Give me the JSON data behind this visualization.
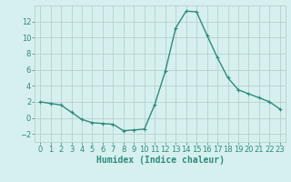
{
  "x": [
    0,
    1,
    2,
    3,
    4,
    5,
    6,
    7,
    8,
    9,
    10,
    11,
    12,
    13,
    14,
    15,
    16,
    17,
    18,
    19,
    20,
    21,
    22,
    23
  ],
  "y": [
    2.0,
    1.8,
    1.6,
    0.7,
    -0.2,
    -0.6,
    -0.7,
    -0.8,
    -1.6,
    -1.5,
    -1.4,
    1.7,
    5.8,
    11.2,
    13.3,
    13.2,
    10.3,
    7.5,
    5.0,
    3.5,
    3.0,
    2.5,
    2.0,
    1.1
  ],
  "line_color": "#2e8b7a",
  "marker": "+",
  "marker_size": 3,
  "marker_linewidth": 0.8,
  "bg_color": "#d6f0ef",
  "grid_color": "#b8d0ce",
  "xlabel": "Humidex (Indice chaleur)",
  "xlabel_fontsize": 7,
  "tick_fontsize": 6,
  "xlim": [
    -0.5,
    23.5
  ],
  "ylim": [
    -3,
    14
  ],
  "yticks": [
    -2,
    0,
    2,
    4,
    6,
    8,
    10,
    12
  ],
  "xticks": [
    0,
    1,
    2,
    3,
    4,
    5,
    6,
    7,
    8,
    9,
    10,
    11,
    12,
    13,
    14,
    15,
    16,
    17,
    18,
    19,
    20,
    21,
    22,
    23
  ],
  "linewidth": 1.0
}
